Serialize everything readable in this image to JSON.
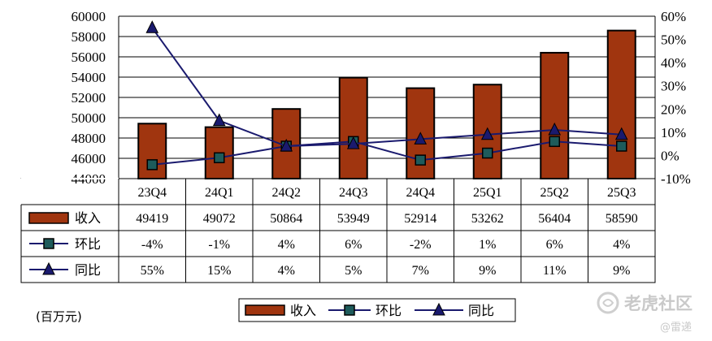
{
  "chart_data": {
    "type": "bar",
    "categories": [
      "23Q4",
      "24Q1",
      "24Q2",
      "24Q3",
      "24Q4",
      "25Q1",
      "25Q2",
      "25Q3"
    ],
    "series": [
      {
        "name": "收入",
        "kind": "bar",
        "axis": "left",
        "values": [
          49419,
          49072,
          50864,
          53949,
          52914,
          53262,
          56404,
          58590
        ],
        "display": [
          "49419",
          "49072",
          "50864",
          "53949",
          "52914",
          "53262",
          "56404",
          "58590"
        ]
      },
      {
        "name": "环比",
        "kind": "line",
        "marker": "square",
        "axis": "right",
        "values": [
          -4,
          -1,
          4,
          6,
          -2,
          1,
          6,
          4
        ],
        "display": [
          "-4%",
          "-1%",
          "4%",
          "6%",
          "-2%",
          "1%",
          "6%",
          "4%"
        ]
      },
      {
        "name": "同比",
        "kind": "line",
        "marker": "triangle",
        "axis": "right",
        "values": [
          55,
          15,
          4,
          5,
          7,
          9,
          11,
          9
        ],
        "display": [
          "55%",
          "15%",
          "4%",
          "5%",
          "7%",
          "9%",
          "11%",
          "9%"
        ]
      }
    ],
    "ylim_left": [
      44000,
      60000
    ],
    "yticks_left": [
      "60000",
      "58000",
      "56000",
      "54000",
      "52000",
      "50000",
      "48000",
      "46000",
      "44000"
    ],
    "ylim_right": [
      -10,
      60
    ],
    "yticks_right": [
      "60%",
      "50%",
      "40%",
      "30%",
      "20%",
      "10%",
      "0%",
      "-10%"
    ],
    "unit_label": "(百万元)",
    "grid": true,
    "legend_position": "bottom",
    "data_table": true
  },
  "colors": {
    "bar": "#a0350f",
    "line": "#1a1a6e",
    "marker_fill": "#1e5b5b",
    "grid": "#000000"
  },
  "watermark": {
    "brand": "老虎社区",
    "handle": "@雷递"
  }
}
